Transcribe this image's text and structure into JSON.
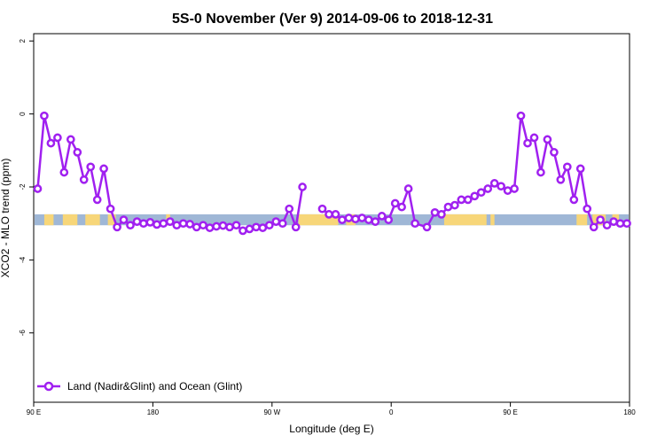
{
  "chart_data": {
    "type": "line",
    "title": "5S-0 November (Ver 9)   2014-09-06 to 2018-12-31",
    "xlabel": "Longitude (deg E)",
    "ylabel": "XCO2 - MLO trend (ppm)",
    "xlim": [
      90,
      540
    ],
    "ylim": [
      -7.9,
      2.2
    ],
    "x_ticks": [
      {
        "value": 90,
        "label": "90 E"
      },
      {
        "value": 180,
        "label": "180"
      },
      {
        "value": 270,
        "label": "90 W"
      },
      {
        "value": 360,
        "label": "0"
      },
      {
        "value": 450,
        "label": "90 E"
      },
      {
        "value": 540,
        "label": "180"
      }
    ],
    "y_ticks": [
      {
        "value": 2,
        "label": "2"
      },
      {
        "value": 0,
        "label": "0"
      },
      {
        "value": -2,
        "label": "-2"
      },
      {
        "value": -4,
        "label": "-4"
      },
      {
        "value": -6,
        "label": "-6"
      }
    ],
    "legend": {
      "position": "bottom-left",
      "entries": [
        "Land (Nadir&Glint) and Ocean (Glint)"
      ]
    },
    "series_color": "#a020f0",
    "band": {
      "y_range": [
        -3.05,
        -2.75
      ],
      "ocean_color": "#9fb7d6",
      "land_color": "#f7d679",
      "land_segments": [
        [
          98,
          105
        ],
        [
          112,
          123
        ],
        [
          129,
          140
        ],
        [
          146,
          152
        ],
        [
          190,
          193
        ],
        [
          290,
          320
        ],
        [
          326,
          333
        ],
        [
          400,
          432
        ],
        [
          435,
          438
        ],
        [
          500,
          508
        ],
        [
          512,
          522
        ],
        [
          527,
          532
        ]
      ]
    },
    "series": [
      {
        "name": "Land (Nadir&Glint) and Ocean (Glint)",
        "segments": [
          [
            [
              93,
              -2.05
            ],
            [
              98,
              -0.05
            ],
            [
              103,
              -0.8
            ],
            [
              108,
              -0.65
            ],
            [
              113,
              -1.6
            ],
            [
              118,
              -0.7
            ],
            [
              123,
              -1.05
            ],
            [
              128,
              -1.8
            ],
            [
              133,
              -1.45
            ],
            [
              138,
              -2.35
            ],
            [
              143,
              -1.5
            ],
            [
              148,
              -2.6
            ],
            [
              153,
              -3.1
            ],
            [
              158,
              -2.9
            ],
            [
              163,
              -3.05
            ],
            [
              168,
              -2.95
            ],
            [
              173,
              -3.0
            ],
            [
              178,
              -2.97
            ],
            [
              183,
              -3.03
            ],
            [
              188,
              -3.0
            ],
            [
              193,
              -2.95
            ],
            [
              198,
              -3.05
            ],
            [
              203,
              -3.0
            ],
            [
              208,
              -3.02
            ],
            [
              213,
              -3.1
            ],
            [
              218,
              -3.05
            ],
            [
              223,
              -3.12
            ],
            [
              228,
              -3.08
            ],
            [
              233,
              -3.06
            ],
            [
              238,
              -3.1
            ],
            [
              243,
              -3.05
            ],
            [
              248,
              -3.2
            ],
            [
              253,
              -3.15
            ],
            [
              258,
              -3.1
            ],
            [
              263,
              -3.12
            ],
            [
              268,
              -3.05
            ],
            [
              273,
              -2.95
            ],
            [
              278,
              -3.0
            ],
            [
              283,
              -2.6
            ],
            [
              288,
              -3.1
            ],
            [
              293,
              -2.0
            ]
          ],
          [
            [
              308,
              -2.6
            ],
            [
              313,
              -2.75
            ],
            [
              318,
              -2.75
            ],
            [
              323,
              -2.9
            ],
            [
              328,
              -2.85
            ],
            [
              333,
              -2.88
            ],
            [
              338,
              -2.85
            ],
            [
              343,
              -2.9
            ],
            [
              348,
              -2.95
            ],
            [
              353,
              -2.8
            ],
            [
              358,
              -2.9
            ],
            [
              363,
              -2.45
            ],
            [
              368,
              -2.55
            ],
            [
              373,
              -2.05
            ],
            [
              378,
              -3.0
            ],
            [
              387,
              -3.1
            ],
            [
              393,
              -2.7
            ],
            [
              398,
              -2.75
            ],
            [
              403,
              -2.55
            ],
            [
              408,
              -2.5
            ],
            [
              413,
              -2.35
            ],
            [
              418,
              -2.35
            ],
            [
              423,
              -2.25
            ],
            [
              428,
              -2.15
            ],
            [
              433,
              -2.05
            ],
            [
              438,
              -1.9
            ],
            [
              443,
              -1.98
            ],
            [
              448,
              -2.1
            ],
            [
              453,
              -2.05
            ],
            [
              458,
              -0.05
            ],
            [
              463,
              -0.8
            ],
            [
              468,
              -0.65
            ],
            [
              473,
              -1.6
            ],
            [
              478,
              -0.7
            ],
            [
              483,
              -1.05
            ],
            [
              488,
              -1.8
            ],
            [
              493,
              -1.45
            ],
            [
              498,
              -2.35
            ],
            [
              503,
              -1.5
            ],
            [
              508,
              -2.6
            ],
            [
              513,
              -3.1
            ],
            [
              518,
              -2.9
            ],
            [
              523,
              -3.05
            ],
            [
              528,
              -2.95
            ],
            [
              533,
              -3.0
            ],
            [
              538,
              -3.0
            ]
          ]
        ]
      }
    ]
  }
}
